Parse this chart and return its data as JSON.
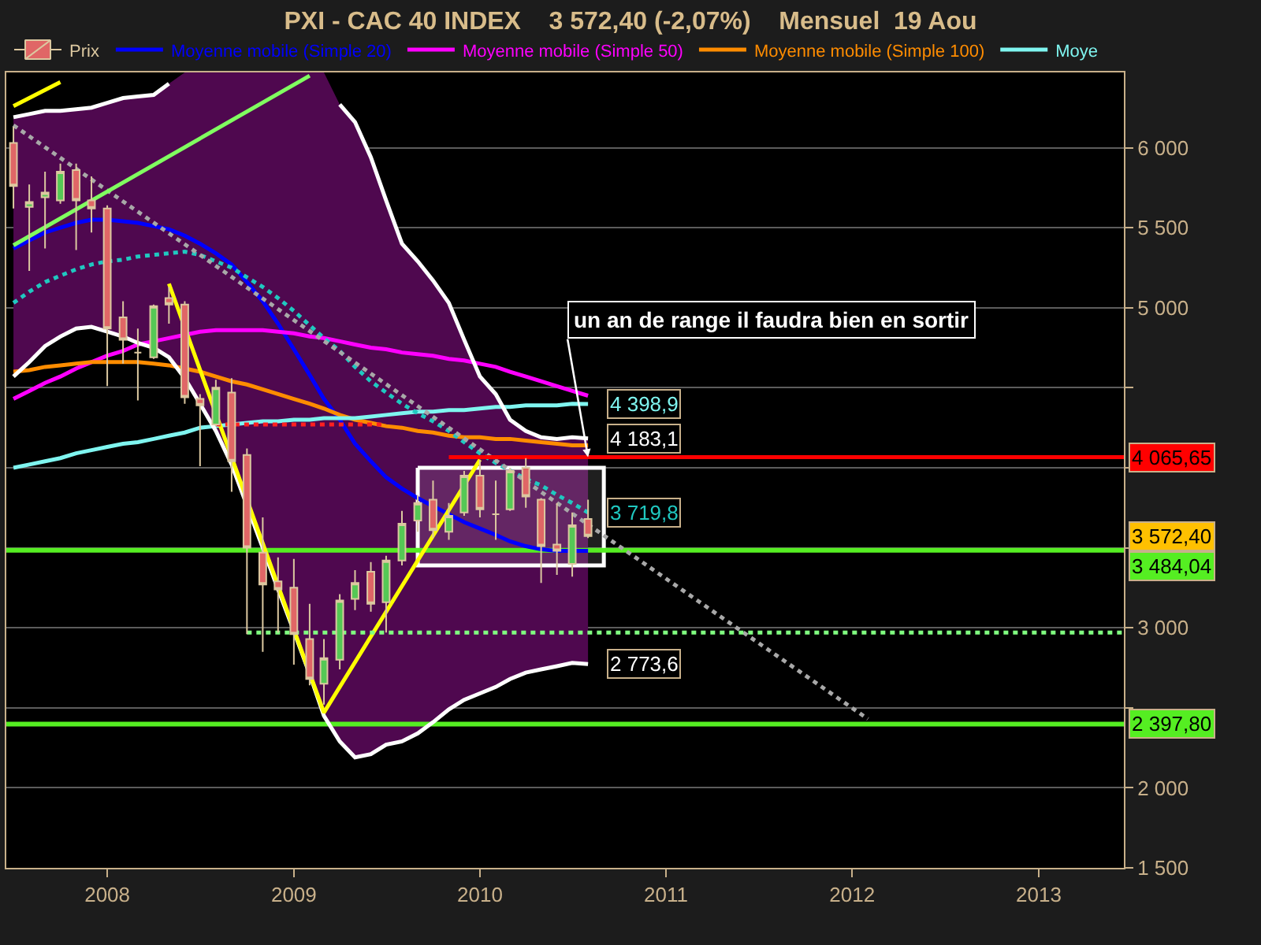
{
  "chart_data": {
    "type": "candlestick",
    "title": "PXI - CAC 40 INDEX    3 572,40 (-2,07%)    Mensuel  19 Aou",
    "x": [
      "2007-07",
      "2007-08",
      "2007-09",
      "2007-10",
      "2007-11",
      "2007-12",
      "2008-01",
      "2008-02",
      "2008-03",
      "2008-04",
      "2008-05",
      "2008-06",
      "2008-07",
      "2008-08",
      "2008-09",
      "2008-10",
      "2008-11",
      "2008-12",
      "2009-01",
      "2009-02",
      "2009-03",
      "2009-04",
      "2009-05",
      "2009-06",
      "2009-07",
      "2009-08",
      "2009-09",
      "2009-10",
      "2009-11",
      "2009-12",
      "2010-01",
      "2010-02",
      "2010-03",
      "2010-04",
      "2010-05",
      "2010-06",
      "2010-07",
      "2010-08"
    ],
    "xlim": [
      "2007-06-17",
      "2013-06-17"
    ],
    "xticks": [
      "2008",
      "2009",
      "2010",
      "2011",
      "2012",
      "2013"
    ],
    "ylim": [
      1500,
      6470
    ],
    "yticks": [
      {
        "value": 1500,
        "label": "1 500"
      },
      {
        "value": 2000,
        "label": "2 000"
      },
      {
        "value": 2500,
        "label": null
      },
      {
        "value": 3000,
        "label": "3 000"
      },
      {
        "value": 3500,
        "label": null
      },
      {
        "value": 4000,
        "label": null
      },
      {
        "value": 4500,
        "label": null
      },
      {
        "value": 5000,
        "label": "5 000"
      },
      {
        "value": 5500,
        "label": "5 500"
      },
      {
        "value": 6000,
        "label": "6 000"
      }
    ],
    "grid": "y",
    "legend": "top left",
    "series": [
      {
        "name": "Prix",
        "color": "#dcc8a0",
        "colors": [
          "#e06666",
          "#55c855",
          "#55c855",
          "#55c855",
          "#e06666",
          "#e06666",
          "#e06666",
          "#e06666",
          "#dcc8a0",
          "#55c855",
          "#e06666",
          "#e06666",
          "#e06666",
          "#55c855",
          "#e06666",
          "#e06666",
          "#e06666",
          "#e06666",
          "#e06666",
          "#e06666",
          "#55c855",
          "#55c855",
          "#55c855",
          "#e06666",
          "#55c855",
          "#55c855",
          "#55c855",
          "#e06666",
          "#55c855",
          "#55c855",
          "#e06666",
          "#dcc8a0",
          "#55c855",
          "#e06666",
          "#e06666",
          "#e06666",
          "#55c855",
          "#e06666"
        ],
        "ohlc": [
          [
            6030,
            6130,
            5620,
            5760
          ],
          [
            5630,
            5770,
            5230,
            5660
          ],
          [
            5690,
            5850,
            5370,
            5720
          ],
          [
            5670,
            5900,
            5650,
            5850
          ],
          [
            5860,
            5900,
            5360,
            5670
          ],
          [
            5670,
            5820,
            5470,
            5620
          ],
          [
            5620,
            5640,
            4510,
            4870
          ],
          [
            4940,
            5040,
            4650,
            4800
          ],
          [
            4720,
            4870,
            4420,
            4720
          ],
          [
            4690,
            5020,
            4680,
            5010
          ],
          [
            5060,
            5130,
            4900,
            5020
          ],
          [
            5020,
            5040,
            4400,
            4440
          ],
          [
            4430,
            4460,
            4010,
            4390
          ],
          [
            4270,
            4550,
            4260,
            4500
          ],
          [
            4470,
            4560,
            3850,
            4040
          ],
          [
            4080,
            4120,
            2960,
            3500
          ],
          [
            3470,
            3690,
            2850,
            3270
          ],
          [
            3290,
            3440,
            2970,
            3240
          ],
          [
            3250,
            3430,
            2770,
            2960
          ],
          [
            2930,
            3150,
            2640,
            2680
          ],
          [
            2650,
            2930,
            2520,
            2810
          ],
          [
            2800,
            3210,
            2740,
            3170
          ],
          [
            3180,
            3360,
            3110,
            3280
          ],
          [
            3350,
            3410,
            3100,
            3150
          ],
          [
            3160,
            3450,
            2970,
            3420
          ],
          [
            3420,
            3730,
            3390,
            3650
          ],
          [
            3670,
            3830,
            3600,
            3780
          ],
          [
            3800,
            3920,
            3560,
            3610
          ],
          [
            3600,
            3780,
            3550,
            3700
          ],
          [
            3720,
            3980,
            3700,
            3950
          ],
          [
            3950,
            4050,
            3690,
            3740
          ],
          [
            3710,
            3920,
            3550,
            3710
          ],
          [
            3740,
            4000,
            3730,
            3980
          ],
          [
            4000,
            4060,
            3750,
            3820
          ],
          [
            3800,
            3810,
            3280,
            3510
          ],
          [
            3520,
            3780,
            3330,
            3480
          ],
          [
            3400,
            3720,
            3320,
            3640
          ],
          [
            3680,
            3800,
            3560,
            3572.4
          ]
        ],
        "value_labels": [
          null,
          null,
          null,
          null,
          null,
          null,
          null,
          null,
          null,
          null,
          null,
          null,
          null,
          null,
          null,
          null,
          null,
          null,
          null,
          null,
          null,
          null,
          null,
          null,
          null,
          null,
          null,
          null,
          null,
          null,
          null,
          null,
          null,
          null,
          null,
          null,
          null,
          "3 572,40"
        ]
      },
      {
        "name": "Moyenne mobile (Simple 20)",
        "type": "line",
        "color": "#0000ff",
        "values": [
          5370,
          5420,
          5470,
          5500,
          5530,
          5550,
          5550,
          5540,
          5530,
          5510,
          5490,
          5450,
          5400,
          5340,
          5270,
          5160,
          5040,
          4900,
          4740,
          4580,
          4430,
          4300,
          4150,
          4040,
          3940,
          3870,
          3810,
          3760,
          3710,
          3660,
          3620,
          3580,
          3540,
          3510,
          3490,
          3480,
          3480,
          3480
        ],
        "upper": [
          6190,
          6210,
          6230,
          6230,
          6240,
          6250,
          6280,
          6310,
          6320,
          6330,
          6400,
          6470,
          6470,
          6470,
          6470,
          6470,
          6470,
          6470,
          6470,
          6470,
          6470,
          6270,
          6160,
          5940,
          5670,
          5400,
          5290,
          5170,
          5030,
          4800,
          4570,
          4460,
          4300,
          4230,
          4190,
          4180,
          4190,
          4183.1
        ],
        "lower": [
          4570,
          4660,
          4760,
          4820,
          4870,
          4880,
          4850,
          4820,
          4780,
          4750,
          4690,
          4560,
          4400,
          4230,
          4020,
          3760,
          3500,
          3240,
          2980,
          2710,
          2450,
          2290,
          2190,
          2210,
          2270,
          2290,
          2340,
          2410,
          2490,
          2550,
          2590,
          2630,
          2680,
          2720,
          2740,
          2760,
          2780,
          2773.6
        ]
      },
      {
        "name": "Moyenne mobile (Simple 50)",
        "type": "line",
        "color": "#ff00ff",
        "values": [
          4430,
          4480,
          4530,
          4570,
          4620,
          4660,
          4700,
          4730,
          4770,
          4790,
          4810,
          4830,
          4850,
          4860,
          4860,
          4860,
          4860,
          4850,
          4840,
          4820,
          4810,
          4790,
          4770,
          4750,
          4740,
          4720,
          4710,
          4700,
          4680,
          4670,
          4650,
          4630,
          4600,
          4570,
          4540,
          4510,
          4480,
          4450
        ]
      },
      {
        "name": "Moyenne mobile (Simple 100)",
        "type": "line",
        "color": "#ff8c00",
        "values": [
          4600,
          4610,
          4630,
          4640,
          4650,
          4660,
          4660,
          4660,
          4660,
          4650,
          4640,
          4620,
          4600,
          4570,
          4540,
          4520,
          4490,
          4460,
          4430,
          4400,
          4370,
          4330,
          4300,
          4280,
          4260,
          4250,
          4230,
          4220,
          4200,
          4190,
          4190,
          4180,
          4180,
          4170,
          4160,
          4150,
          4140,
          4140
        ]
      },
      {
        "name": "Moye",
        "type": "line",
        "color": "#7ff5f0",
        "values": [
          4000,
          4020,
          4040,
          4060,
          4090,
          4110,
          4130,
          4150,
          4160,
          4180,
          4200,
          4220,
          4250,
          4260,
          4270,
          4280,
          4290,
          4290,
          4300,
          4300,
          4310,
          4310,
          4310,
          4320,
          4330,
          4340,
          4350,
          4350,
          4360,
          4360,
          4370,
          4380,
          4380,
          4390,
          4390,
          4390,
          4400,
          4398.9
        ],
        "value_labels": [
          null,
          null,
          null,
          null,
          null,
          null,
          null,
          null,
          null,
          null,
          null,
          null,
          null,
          null,
          null,
          null,
          null,
          null,
          null,
          null,
          null,
          null,
          null,
          null,
          null,
          null,
          null,
          null,
          null,
          null,
          null,
          null,
          null,
          null,
          null,
          null,
          null,
          "4 398,9"
        ]
      },
      {
        "type": "line",
        "color": "#ffffff",
        "x": [
          "2007-07",
          "2007-08",
          "2007-09",
          "2007-10",
          "2007-11",
          "2007-12",
          "2008-01",
          "2008-02",
          "2008-03",
          "2008-04",
          "2008-05"
        ],
        "values": [
          6190,
          6210,
          6230,
          6230,
          6240,
          6250,
          6280,
          6310,
          6320,
          6330,
          6400
        ]
      },
      {
        "type": "line",
        "color": "#ffffff",
        "x": [
          "2009-04",
          "2009-05",
          "2009-06",
          "2009-07",
          "2009-08",
          "2009-09",
          "2009-10",
          "2009-11",
          "2009-12",
          "2010-01",
          "2010-02",
          "2010-03",
          "2010-04",
          "2010-05",
          "2010-06",
          "2010-07",
          "2010-08"
        ],
        "values": [
          6270,
          6160,
          5940,
          5670,
          5400,
          5290,
          5170,
          5030,
          4800,
          4570,
          4460,
          4300,
          4230,
          4190,
          4180,
          4190,
          4183.1
        ],
        "value_labels": [
          null,
          null,
          null,
          null,
          null,
          null,
          null,
          null,
          null,
          null,
          null,
          null,
          null,
          null,
          null,
          null,
          "4 183,1"
        ]
      },
      {
        "type": "line",
        "color": "#ffffff",
        "values": [
          4570,
          4660,
          4760,
          4820,
          4870,
          4880,
          4850,
          4820,
          4780,
          4750,
          4690,
          4560,
          4400,
          4230,
          4020,
          null,
          3500,
          3240,
          2980,
          2710,
          2450,
          2290,
          2190,
          2210,
          2270,
          2290,
          2340,
          2410,
          2490,
          2550,
          2590,
          2630,
          2680,
          2720,
          2740,
          2760,
          2780,
          2773.6
        ],
        "value_labels": [
          null,
          null,
          null,
          null,
          null,
          null,
          null,
          null,
          null,
          null,
          null,
          null,
          null,
          null,
          null,
          null,
          null,
          null,
          null,
          null,
          null,
          null,
          null,
          null,
          null,
          null,
          null,
          null,
          null,
          null,
          null,
          null,
          null,
          null,
          null,
          null,
          null,
          "2 773,6"
        ]
      },
      {
        "type": "line",
        "color": "#20c8c0",
        "line_style": "dotted",
        "values": [
          5030,
          5100,
          5160,
          5200,
          5240,
          5270,
          5290,
          5300,
          5320,
          5330,
          5340,
          5350,
          5330,
          5290,
          5250,
          5190,
          5130,
          5060,
          4980,
          4890,
          4810,
          4730,
          4630,
          4540,
          4470,
          4400,
          4340,
          4290,
          4230,
          4160,
          4090,
          4030,
          null,
          3930,
          3890,
          3830,
          3780,
          3719.8
        ],
        "value_labels": [
          null,
          null,
          null,
          null,
          null,
          null,
          null,
          null,
          null,
          null,
          null,
          null,
          null,
          null,
          null,
          null,
          null,
          null,
          null,
          null,
          null,
          null,
          null,
          null,
          null,
          null,
          null,
          null,
          null,
          null,
          null,
          null,
          null,
          null,
          null,
          null,
          null,
          "3 719,8"
        ]
      },
      {
        "type": "line",
        "color": "#a8a8a8",
        "line_style": "dotted",
        "x": [
          "2007-07",
          "2012-02"
        ],
        "values": [
          6140,
          2430
        ]
      },
      {
        "type": "line",
        "color": "#80ff60",
        "x": [
          "2007-07",
          "2009-02"
        ],
        "values": [
          5390,
          6450
        ]
      },
      {
        "type": "line",
        "color": "#ffff00",
        "x": [
          "2007-07",
          "2007-10"
        ],
        "values": [
          6260,
          6410
        ]
      },
      {
        "type": "line",
        "color": "#ffff00",
        "x": [
          "2008-05",
          "2009-03",
          "2010-01"
        ],
        "values": [
          5150,
          2470,
          4050
        ]
      },
      {
        "type": "line",
        "color": "#ff2020",
        "line_style": "dotted",
        "x": [
          "2008-08",
          "2009-07"
        ],
        "values": [
          4270,
          4270
        ]
      },
      {
        "type": "line",
        "color": "#ff0000",
        "x": [
          "2009-11",
          "2013-06-17"
        ],
        "values": [
          4065.65,
          4065.65
        ],
        "value_labels": [
          null,
          "4 065,65"
        ]
      },
      {
        "type": "line",
        "color": "#80ff80",
        "line_style": "dotted",
        "x": [
          "2008-10",
          "2013-06-17"
        ],
        "values": [
          2970,
          2970
        ]
      },
      {
        "type": "line",
        "color": "#ffffff",
        "x": [
          "2009-09",
          "2010-09"
        ],
        "values": [
          null,
          null
        ],
        "lower": [
          3390,
          3390
        ],
        "upper": [
          4000,
          4000
        ]
      }
    ],
    "ref_lines": [
      {
        "axis": "y",
        "value": 3484.04,
        "label": "3 484,04",
        "color": "#55ee22"
      },
      {
        "axis": "y",
        "value": 2397.8,
        "label": "2 397,80",
        "color": "#55ee22"
      }
    ],
    "annotations": [
      {
        "text": "un an de range il faudra bien en sortir",
        "x": "2010-08",
        "y": 4065.65
      }
    ]
  }
}
